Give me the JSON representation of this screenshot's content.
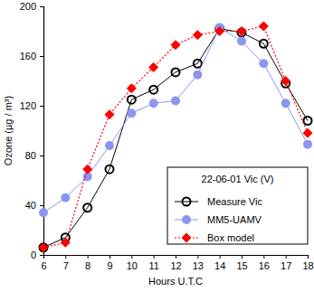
{
  "chart_data": {
    "type": "line",
    "x_label": "Hours U.T.C",
    "y_label": "Ozone (µg / m³)",
    "legend_title": "22-06-01 Vic (V)",
    "legend": "lower right",
    "grid": false,
    "x": [
      6,
      7,
      8,
      9,
      10,
      11,
      12,
      13,
      14,
      15,
      16,
      17,
      18
    ],
    "xlim": [
      6,
      18
    ],
    "xticks": [
      6,
      7,
      8,
      9,
      10,
      11,
      12,
      13,
      14,
      15,
      16,
      17,
      18
    ],
    "ylim": [
      0,
      200
    ],
    "yticks": [
      0,
      40,
      80,
      120,
      160,
      200
    ],
    "series": [
      {
        "name": "Measure Vic",
        "color": "#000000",
        "marker": "circle-open",
        "line_style": "solid",
        "values": [
          6,
          14,
          38,
          69,
          125,
          133,
          147,
          154,
          182,
          179,
          170,
          138,
          108
        ]
      },
      {
        "name": "MM5-UAMV",
        "color": "#8c96f0",
        "marker": "circle",
        "line_style": "solid",
        "values": [
          34,
          46,
          63,
          88,
          114,
          122,
          124,
          145,
          183,
          172,
          154,
          122,
          89
        ]
      },
      {
        "name": "Box model",
        "color": "#ff0000",
        "marker": "diamond",
        "line_style": "dotted",
        "values": [
          6,
          10,
          69,
          113,
          134,
          151,
          169,
          177,
          180,
          180,
          184,
          140,
          98
        ]
      }
    ]
  }
}
